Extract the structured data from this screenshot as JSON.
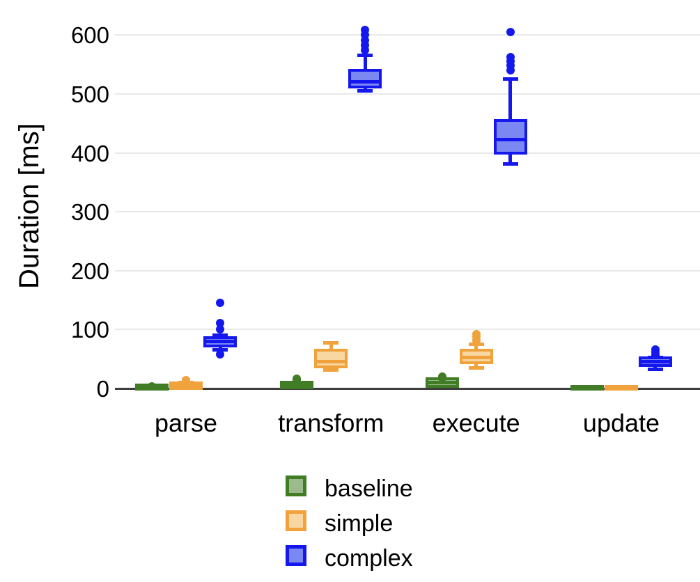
{
  "chart_data": {
    "type": "boxplot",
    "title": "",
    "xlabel": "",
    "ylabel": "Duration [ms]",
    "ylim": [
      0,
      640
    ],
    "yticks": [
      0,
      100,
      200,
      300,
      400,
      500,
      600
    ],
    "grid": "horizontal",
    "grid_color": "#e9e9e9",
    "axis_color": "#3d3d3d",
    "legend_position": "bottom-center",
    "categories": [
      "parse",
      "transform",
      "execute",
      "update"
    ],
    "legend": [
      {
        "name": "baseline",
        "stroke": "#417c26",
        "fill": "#9cba8c"
      },
      {
        "name": "simple",
        "stroke": "#f0a23c",
        "fill": "#f8d7a2"
      },
      {
        "name": "complex",
        "stroke": "#1518ee",
        "fill": "#7b88f2"
      }
    ],
    "series": [
      {
        "name": "baseline",
        "boxes": [
          {
            "category": "parse",
            "lo": 0.5,
            "q1": 1,
            "median": 2,
            "q3": 3,
            "hi": 4.5,
            "outliers": [
              3
            ]
          },
          {
            "category": "transform",
            "lo": 2,
            "q1": 4,
            "median": 6,
            "q3": 8,
            "hi": 10,
            "outliers": [
              14,
              17
            ]
          },
          {
            "category": "execute",
            "lo": 4,
            "q1": 6,
            "median": 10,
            "q3": 14,
            "hi": 16,
            "outliers": [
              18,
              20
            ]
          },
          {
            "category": "update",
            "lo": 0.2,
            "q1": 0.6,
            "median": 1,
            "q3": 1.5,
            "hi": 2,
            "outliers": []
          }
        ]
      },
      {
        "name": "simple",
        "boxes": [
          {
            "category": "parse",
            "lo": 1,
            "q1": 2.5,
            "median": 4.5,
            "q3": 7,
            "hi": 9.5,
            "outliers": [
              12,
              14
            ]
          },
          {
            "category": "transform",
            "lo": 31,
            "q1": 39,
            "median": 46,
            "q3": 63,
            "hi": 77,
            "outliers": []
          },
          {
            "category": "execute",
            "lo": 35,
            "q1": 46,
            "median": 53,
            "q3": 63,
            "hi": 75,
            "outliers": [
              82,
              87,
              92
            ]
          },
          {
            "category": "update",
            "lo": 0.2,
            "q1": 0.6,
            "median": 1,
            "q3": 1.5,
            "hi": 2,
            "outliers": []
          }
        ]
      },
      {
        "name": "complex",
        "boxes": [
          {
            "category": "parse",
            "lo": 66,
            "q1": 75,
            "median": 80,
            "q3": 84,
            "hi": 90,
            "outliers": [
              58,
              101,
              111,
              145
            ]
          },
          {
            "category": "transform",
            "lo": 505,
            "q1": 514,
            "median": 521,
            "q3": 538,
            "hi": 566,
            "outliers": [
              575,
              583,
              591,
              600,
              609
            ]
          },
          {
            "category": "execute",
            "lo": 381,
            "q1": 402,
            "median": 422,
            "q3": 453,
            "hi": 525,
            "outliers": [
              540,
              548,
              556,
              563,
              605
            ]
          },
          {
            "category": "update",
            "lo": 33,
            "q1": 41,
            "median": 45,
            "q3": 50,
            "hi": 53,
            "outliers": [
              57,
              61,
              66
            ]
          }
        ]
      }
    ]
  }
}
